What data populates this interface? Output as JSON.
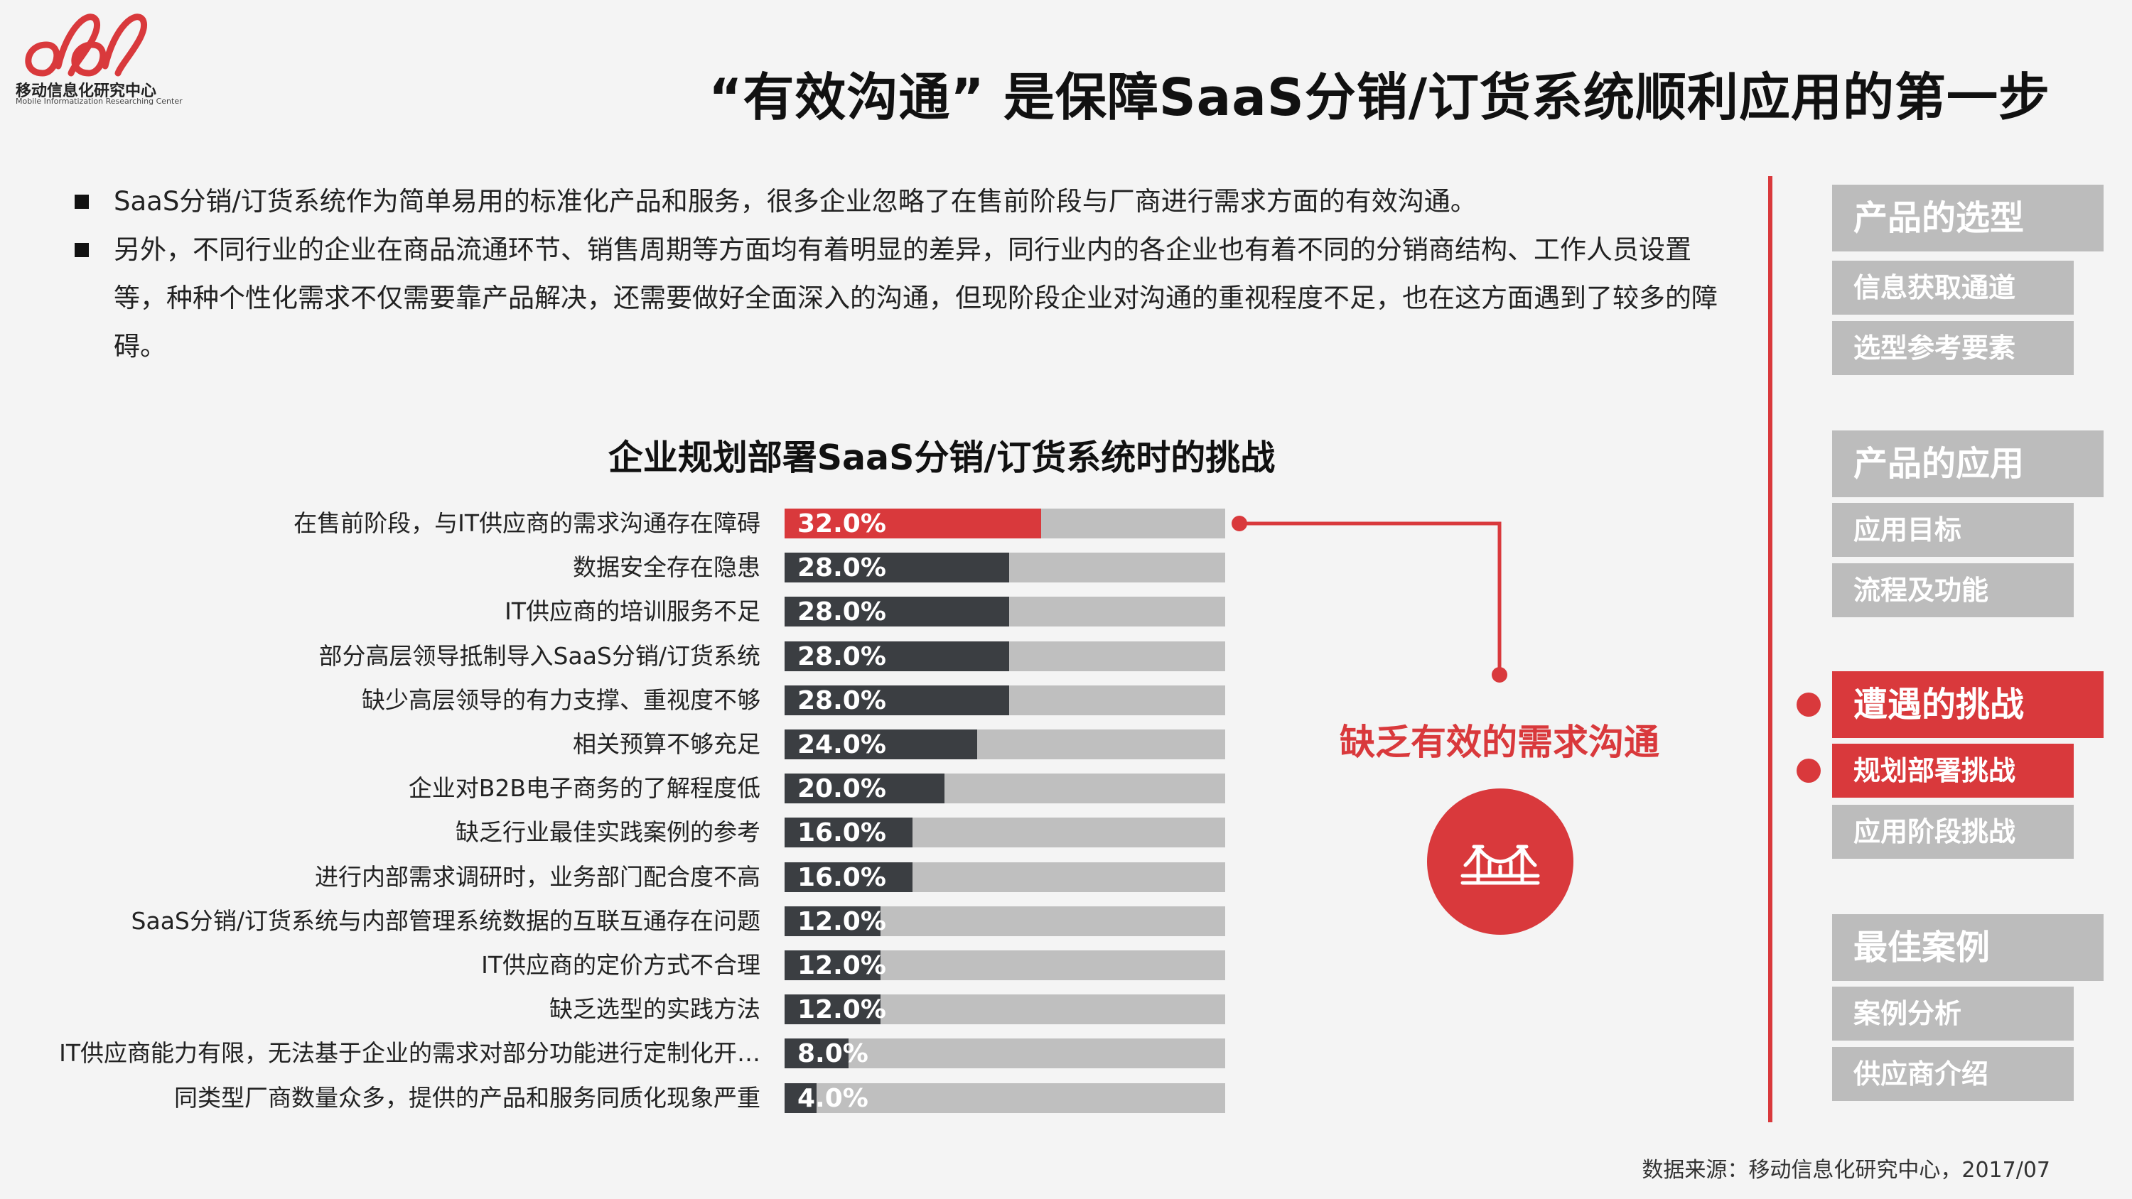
{
  "logo": {
    "text": "移动信息化研究中心",
    "subtext": "Mobile Informatization Researching Center",
    "color": "#d9393c"
  },
  "title": "“有效沟通” 是保障SaaS分销/订货系统顺利应用的第一步",
  "bullets": [
    "SaaS分销/订货系统作为简单易用的标准化产品和服务，很多企业忽略了在售前阶段与厂商进行需求方面的有效沟通。",
    "另外，不同行业的企业在商品流通环节、销售周期等方面均有着明显的差异，同行业内的各企业也有着不同的分销商结构、工作人员设置等，种种个性化需求不仅需要靠产品解决，还需要做好全面深入的沟通，但现阶段企业对沟通的重视程度不足，也在这方面遇到了较多的障碍。"
  ],
  "chart_data": {
    "type": "bar",
    "orientation": "horizontal",
    "title": "企业规划部署SaaS分销/订货系统时的挑战",
    "categories": [
      "在售前阶段，与IT供应商的需求沟通存在障碍",
      "数据安全存在隐患",
      "IT供应商的培训服务不足",
      "部分高层领导抵制导入SaaS分销/订货系统",
      "缺少高层领导的有力支撑、重视度不够",
      "相关预算不够充足",
      "企业对B2B电子商务的了解程度低",
      "缺乏行业最佳实践案例的参考",
      "进行内部需求调研时，业务部门配合度不高",
      "SaaS分销/订货系统与内部管理系统数据的互联互通存在问题",
      "IT供应商的定价方式不合理",
      "缺乏选型的实践方法",
      "IT供应商能力有限，无法基于企业的需求对部分功能进行定制化开…",
      "同类型厂商数量众多，提供的产品和服务同质化现象严重"
    ],
    "values": [
      32.0,
      28.0,
      28.0,
      28.0,
      28.0,
      24.0,
      20.0,
      16.0,
      16.0,
      12.0,
      12.0,
      12.0,
      8.0,
      4.0
    ],
    "labels": [
      "32.0%",
      "28.0%",
      "28.0%",
      "28.0%",
      "28.0%",
      "24.0%",
      "20.0%",
      "16.0%",
      "16.0%",
      "12.0%",
      "12.0%",
      "12.0%",
      "8.0%",
      "4.0%"
    ],
    "xlim": [
      0,
      55
    ],
    "highlight_index": 0,
    "colors": {
      "highlight": "#d9393c",
      "bar": "#3b3e42",
      "track": "#bfbfbf"
    }
  },
  "callout": {
    "text": "缺乏有效的需求沟通",
    "icon": "bridge-icon"
  },
  "nav": [
    {
      "label": "产品的选型",
      "level": "main",
      "active": false
    },
    {
      "label": "信息获取通道",
      "level": "sub",
      "active": false
    },
    {
      "label": "选型参考要素",
      "level": "sub",
      "active": false
    },
    {
      "label": "产品的应用",
      "level": "main",
      "active": false
    },
    {
      "label": "应用目标",
      "level": "sub",
      "active": false
    },
    {
      "label": "流程及功能",
      "level": "sub",
      "active": false
    },
    {
      "label": "遭遇的挑战",
      "level": "main",
      "active": true
    },
    {
      "label": "规划部署挑战",
      "level": "sub",
      "active": true
    },
    {
      "label": "应用阶段挑战",
      "level": "sub",
      "active": false
    },
    {
      "label": "最佳案例",
      "level": "main",
      "active": false
    },
    {
      "label": "案例分析",
      "level": "sub",
      "active": false
    },
    {
      "label": "供应商介绍",
      "level": "sub",
      "active": false
    }
  ],
  "source": "数据来源：移动信息化研究中心，2017/07",
  "colors": {
    "accent": "#d9393c",
    "nav_inactive": "#bcbcbc",
    "background": "#f4f4f4"
  }
}
